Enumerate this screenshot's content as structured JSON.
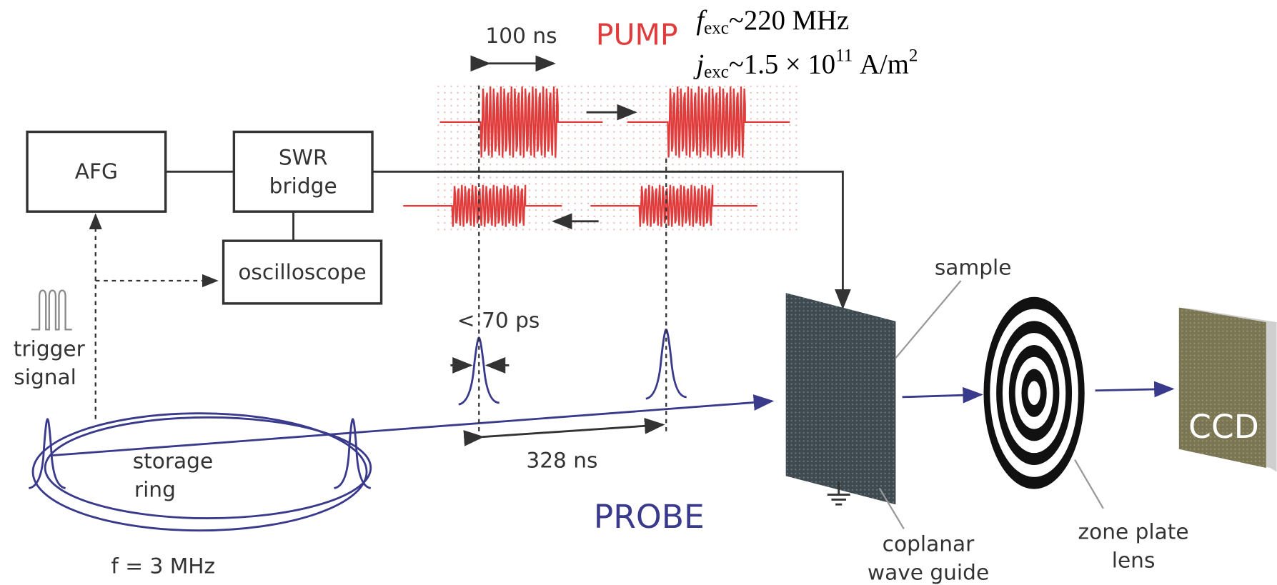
{
  "pump": {
    "label": "PUMP",
    "pulse_width": "100 ns",
    "frequency": {
      "symbol": "f",
      "subscript": "exc",
      "text": "~220 MHz"
    },
    "current_density": {
      "symbol": "j",
      "subscript": "exc",
      "text": "~1.5 × 10",
      "superscript": "11",
      "unit": "A/m",
      "unit_superscript": "2"
    }
  },
  "nodes": {
    "afg": "AFG",
    "swr_bridge": [
      "SWR",
      "bridge"
    ],
    "oscilloscope": "oscilloscope",
    "trigger_signal": [
      "trigger",
      "signal"
    ],
    "storage_ring": [
      "storage",
      "ring"
    ],
    "sample": "sample",
    "coplanar_wave_guide": [
      "coplanar",
      "wave guide"
    ],
    "zone_plate_lens": [
      "zone plate",
      "lens"
    ],
    "ccd": "CCD"
  },
  "probe": {
    "label": "PROBE",
    "pulse_width": "< 70 ps",
    "period": "328 ns",
    "ring_frequency": "f = 3 MHz"
  }
}
